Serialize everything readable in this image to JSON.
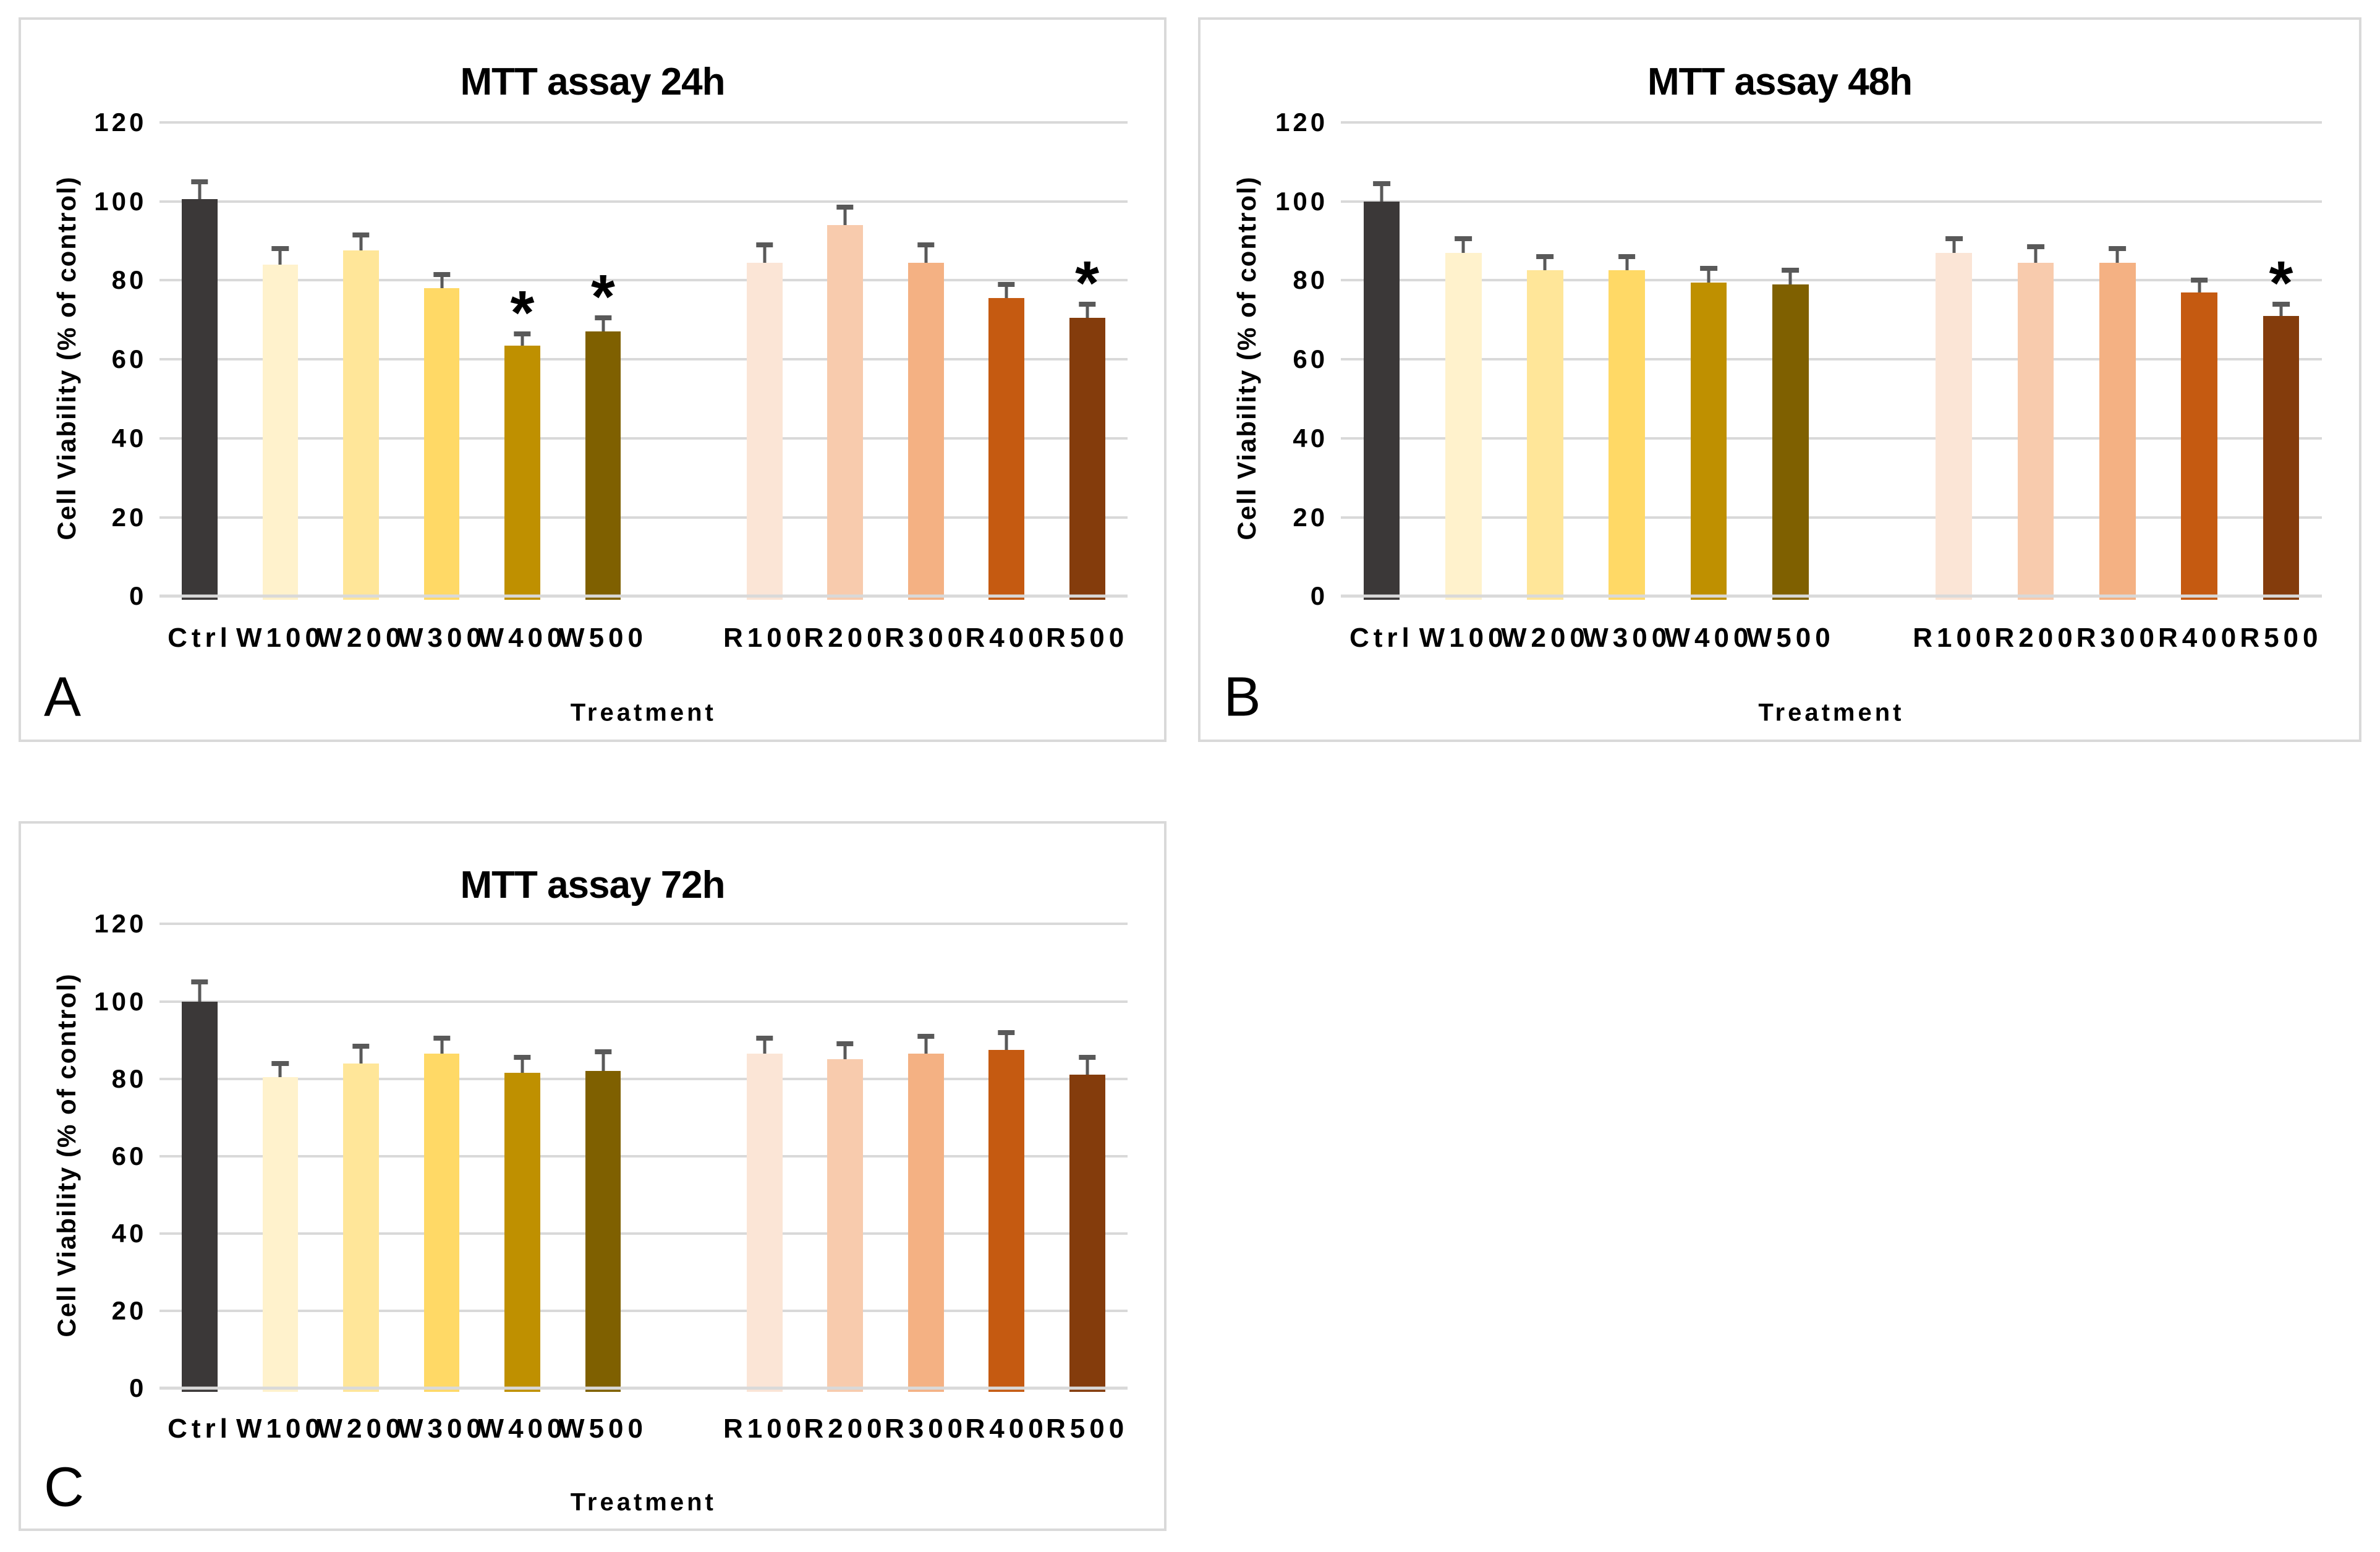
{
  "figure": {
    "background": "#ffffff",
    "significance_marker": "*"
  },
  "styles": {
    "panel_border_color": "#d9d9d9",
    "gridline_color": "#d9d9d9",
    "axis_line_color": "#d9d9d9",
    "error_bar_color": "#595959",
    "text_color": "#000000"
  },
  "bar_colors": [
    "#3b3838",
    "#fff2cc",
    "#ffe699",
    "#ffd966",
    "#bf9000",
    "#7f6000",
    "#fbe5d6",
    "#f8cbad",
    "#f4b183",
    "#c55a11",
    "#843c0c"
  ],
  "chart_data": [
    {
      "type": "bar",
      "panel": "A",
      "title": "MTT assay 24h",
      "xlabel": "Treatment",
      "ylabel": "Cell Viability (% of control)",
      "ylim": [
        0,
        120
      ],
      "yticks": [
        0,
        20,
        40,
        60,
        80,
        100,
        120
      ],
      "grid": true,
      "legend": false,
      "categories": [
        "Ctrl",
        "W100",
        "W200",
        "W300",
        "W400",
        "W500",
        "R100",
        "R200",
        "R300",
        "R400",
        "R500"
      ],
      "values": [
        100.5,
        84,
        87.5,
        78,
        63.5,
        67,
        84.5,
        94,
        84.5,
        75.5,
        70.5
      ],
      "errors": [
        4.5,
        4,
        4,
        3.5,
        3,
        3.5,
        4.5,
        4.5,
        4.5,
        3.5,
        3.5
      ],
      "significant": [
        "",
        "",
        "",
        "",
        "*",
        "*",
        "",
        "",
        "",
        "",
        "*"
      ],
      "bar_colors": [
        "#3b3838",
        "#fff2cc",
        "#ffe699",
        "#ffd966",
        "#bf9000",
        "#7f6000",
        "#fbe5d6",
        "#f8cbad",
        "#f4b183",
        "#c55a11",
        "#843c0c"
      ]
    },
    {
      "type": "bar",
      "panel": "B",
      "title": "MTT assay 48h",
      "xlabel": "Treatment",
      "ylabel": "Cell Viability (% of control)",
      "ylim": [
        0,
        120
      ],
      "yticks": [
        0,
        20,
        40,
        60,
        80,
        100,
        120
      ],
      "grid": true,
      "legend": false,
      "categories": [
        "Ctrl",
        "W100",
        "W200",
        "W300",
        "W400",
        "W500",
        "R100",
        "R200",
        "R300",
        "R400",
        "R500"
      ],
      "values": [
        100,
        87,
        82.5,
        82.5,
        79.5,
        79,
        87,
        84.5,
        84.5,
        77,
        71
      ],
      "errors": [
        4.5,
        3.5,
        3.5,
        3.5,
        3.5,
        3.5,
        3.5,
        4,
        3.5,
        3,
        3
      ],
      "significant": [
        "",
        "",
        "",
        "",
        "",
        "",
        "",
        "",
        "",
        "",
        "*"
      ],
      "bar_colors": [
        "#3b3838",
        "#fff2cc",
        "#ffe699",
        "#ffd966",
        "#bf9000",
        "#7f6000",
        "#fbe5d6",
        "#f8cbad",
        "#f4b183",
        "#c55a11",
        "#843c0c"
      ]
    },
    {
      "type": "bar",
      "panel": "C",
      "title": "MTT assay 72h",
      "xlabel": "Treatment",
      "ylabel": "Cell Viability (% of control)",
      "ylim": [
        0,
        120
      ],
      "yticks": [
        0,
        20,
        40,
        60,
        80,
        100,
        120
      ],
      "grid": true,
      "legend": false,
      "categories": [
        "Ctrl",
        "W100",
        "W200",
        "W300",
        "W400",
        "W500",
        "R100",
        "R200",
        "R300",
        "R400",
        "R500"
      ],
      "values": [
        100,
        80.5,
        84,
        86.5,
        81.5,
        82,
        86.5,
        85,
        86.5,
        87.5,
        81
      ],
      "errors": [
        5,
        3.5,
        4.5,
        4,
        4,
        5,
        4,
        4,
        4.5,
        4.5,
        4.5
      ],
      "significant": [
        "",
        "",
        "",
        "",
        "",
        "",
        "",
        "",
        "",
        "",
        ""
      ],
      "bar_colors": [
        "#3b3838",
        "#fff2cc",
        "#ffe699",
        "#ffd966",
        "#bf9000",
        "#7f6000",
        "#fbe5d6",
        "#f8cbad",
        "#f4b183",
        "#c55a11",
        "#843c0c"
      ]
    }
  ]
}
